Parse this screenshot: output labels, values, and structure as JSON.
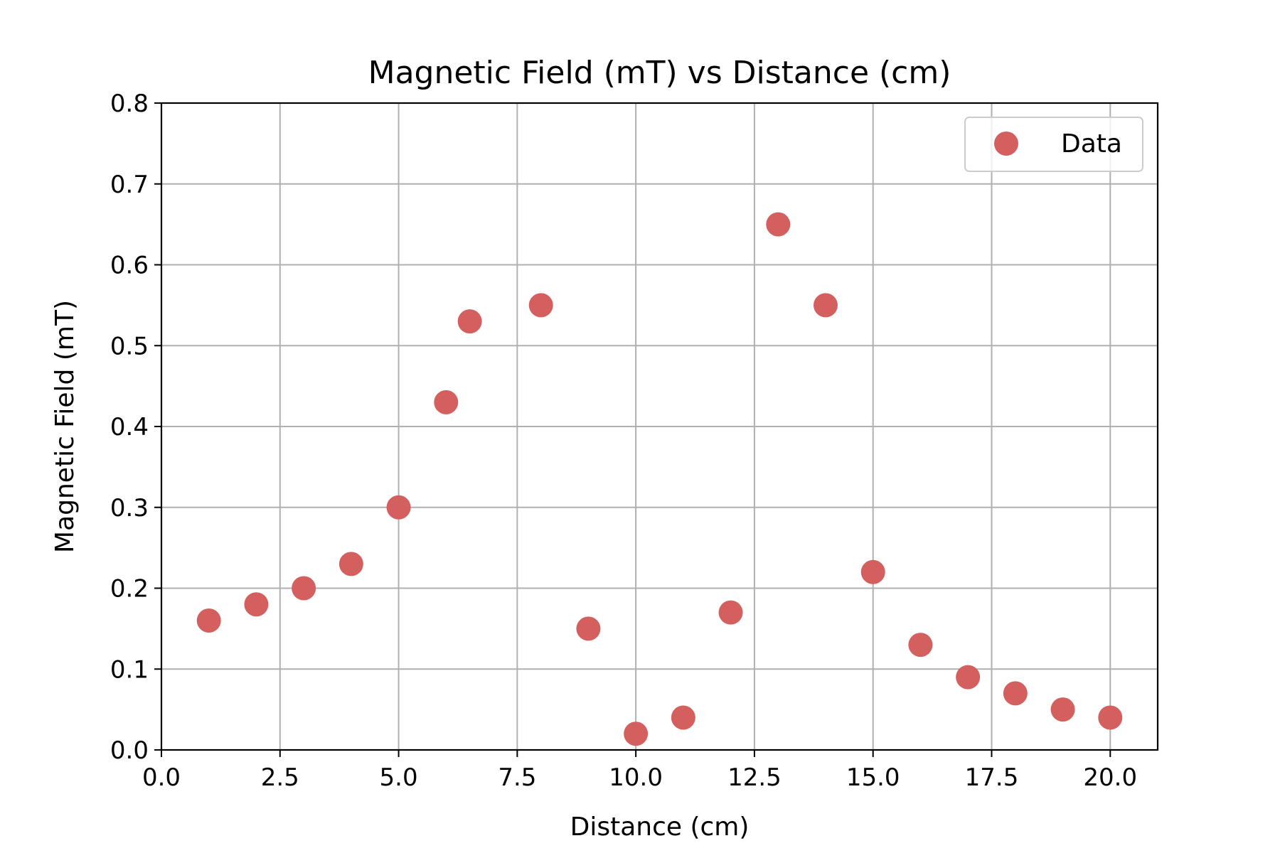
{
  "chart_data": {
    "type": "scatter",
    "title": "Magnetic Field (mT) vs Distance (cm)",
    "xlabel": "Distance (cm)",
    "ylabel": "Magnetic Field (mT)",
    "xlim": [
      0,
      21
    ],
    "ylim": [
      0,
      0.8
    ],
    "xticks": [
      0,
      2.5,
      5,
      7.5,
      10,
      12.5,
      15,
      17.5,
      20
    ],
    "xtick_labels": [
      "0.0",
      "2.5",
      "5.0",
      "7.5",
      "10.0",
      "12.5",
      "15.0",
      "17.5",
      "20.0"
    ],
    "yticks": [
      0,
      0.1,
      0.2,
      0.3,
      0.4,
      0.5,
      0.6,
      0.7,
      0.8
    ],
    "ytick_labels": [
      "0.0",
      "0.1",
      "0.2",
      "0.3",
      "0.4",
      "0.5",
      "0.6",
      "0.7",
      "0.8"
    ],
    "grid": true,
    "legend_position": "top-right",
    "series": [
      {
        "name": "Data",
        "color": "#d45f5f",
        "x": [
          1,
          2,
          3,
          4,
          5,
          6,
          6.5,
          8,
          9,
          10,
          11,
          12,
          13,
          14,
          15,
          16,
          17,
          18,
          19,
          20
        ],
        "y": [
          0.16,
          0.18,
          0.2,
          0.23,
          0.3,
          0.43,
          0.53,
          0.55,
          0.15,
          0.02,
          0.04,
          0.17,
          0.65,
          0.55,
          0.22,
          0.13,
          0.09,
          0.07,
          0.05,
          0.04
        ]
      }
    ]
  }
}
